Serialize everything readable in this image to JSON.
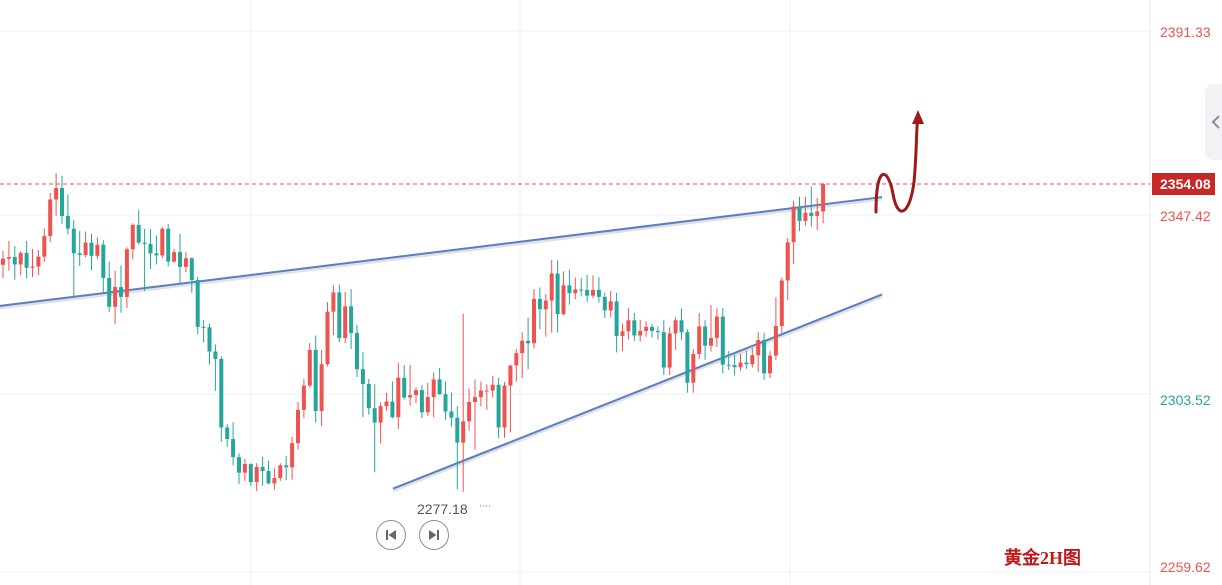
{
  "chart_data": {
    "type": "candlestick",
    "price_axis": {
      "labels": [
        "2391.33",
        "2347.42",
        "2303.52",
        "2259.62"
      ],
      "values": [
        2391.33,
        2347.42,
        2303.52,
        2259.62
      ],
      "range": [
        2259.62,
        2391.33
      ]
    },
    "current_price": {
      "label": "2354.08",
      "value": 2354.08
    },
    "low_marker": {
      "label": "2277.18",
      "value": 2277.18
    },
    "watermark": "黄金2H图",
    "candles": [
      [
        2334.4,
        2337.8,
        2331.2,
        2335.9
      ],
      [
        2335.9,
        2340.2,
        2333.0,
        2336.3
      ],
      [
        2336.3,
        2339.0,
        2330.8,
        2334.5
      ],
      [
        2334.5,
        2337.7,
        2331.9,
        2337.3
      ],
      [
        2337.3,
        2340.2,
        2331.1,
        2333.7
      ],
      [
        2333.7,
        2338.3,
        2331.4,
        2334.0
      ],
      [
        2334.0,
        2338.0,
        2331.9,
        2336.4
      ],
      [
        2336.4,
        2343.3,
        2335.1,
        2341.4
      ],
      [
        2341.4,
        2351.9,
        2339.9,
        2350.3
      ],
      [
        2350.3,
        2356.7,
        2346.4,
        2353.1
      ],
      [
        2353.1,
        2356.1,
        2344.4,
        2346.3
      ],
      [
        2346.3,
        2351.5,
        2341.8,
        2343.2
      ],
      [
        2343.2,
        2345.3,
        2326.3,
        2337.2
      ],
      [
        2337.2,
        2342.6,
        2334.1,
        2336.8
      ],
      [
        2336.8,
        2342.5,
        2336.2,
        2339.8
      ],
      [
        2339.8,
        2342.0,
        2333.1,
        2336.6
      ],
      [
        2336.6,
        2341.1,
        2335.8,
        2339.3
      ],
      [
        2339.3,
        2340.4,
        2327.6,
        2331.2
      ],
      [
        2331.2,
        2335.2,
        2322.9,
        2324.2
      ],
      [
        2324.2,
        2333.0,
        2320.0,
        2329.0
      ],
      [
        2329.0,
        2334.3,
        2322.7,
        2326.6
      ],
      [
        2326.6,
        2338.7,
        2323.9,
        2338.2
      ],
      [
        2338.2,
        2344.5,
        2335.7,
        2344.1
      ],
      [
        2344.1,
        2347.8,
        2339.3,
        2339.8
      ],
      [
        2339.8,
        2343.2,
        2328.0,
        2339.5
      ],
      [
        2339.5,
        2343.1,
        2333.4,
        2337.2
      ],
      [
        2337.2,
        2341.6,
        2334.5,
        2336.7
      ],
      [
        2336.7,
        2343.6,
        2336.0,
        2343.2
      ],
      [
        2343.2,
        2344.4,
        2334.0,
        2335.2
      ],
      [
        2335.2,
        2338.2,
        2334.9,
        2337.5
      ],
      [
        2337.5,
        2342.0,
        2330.1,
        2333.9
      ],
      [
        2333.9,
        2337.6,
        2332.6,
        2336.0
      ],
      [
        2336.0,
        2336.2,
        2327.6,
        2330.7
      ],
      [
        2330.7,
        2331.5,
        2317.5,
        2319.3
      ],
      [
        2319.3,
        2321.0,
        2315.5,
        2319.2
      ],
      [
        2319.2,
        2320.1,
        2310.1,
        2313.3
      ],
      [
        2313.3,
        2315.0,
        2303.7,
        2311.5
      ],
      [
        2311.5,
        2312.1,
        2291.3,
        2294.8
      ],
      [
        2294.8,
        2295.6,
        2290.1,
        2292.0
      ],
      [
        2292.0,
        2296.1,
        2285.6,
        2287.6
      ],
      [
        2287.6,
        2288.5,
        2281.0,
        2283.8
      ],
      [
        2283.8,
        2287.1,
        2281.8,
        2285.9
      ],
      [
        2285.9,
        2286.1,
        2280.6,
        2281.5
      ],
      [
        2281.5,
        2286.1,
        2279.3,
        2285.2
      ],
      [
        2285.2,
        2287.7,
        2280.6,
        2284.2
      ],
      [
        2284.2,
        2286.7,
        2281.0,
        2281.2
      ],
      [
        2281.2,
        2284.9,
        2279.6,
        2282.5
      ],
      [
        2282.5,
        2286.1,
        2281.8,
        2285.6
      ],
      [
        2285.6,
        2287.9,
        2282.0,
        2285.1
      ],
      [
        2285.1,
        2292.5,
        2282.1,
        2291.0
      ],
      [
        2291.0,
        2301.0,
        2289.4,
        2299.1
      ],
      [
        2299.1,
        2306.6,
        2297.1,
        2305.0
      ],
      [
        2305.0,
        2315.4,
        2304.5,
        2313.7
      ],
      [
        2313.7,
        2317.2,
        2296.0,
        2298.8
      ],
      [
        2298.8,
        2313.7,
        2295.1,
        2310.2
      ],
      [
        2310.2,
        2325.3,
        2309.7,
        2323.0
      ],
      [
        2323.0,
        2329.4,
        2317.3,
        2327.7
      ],
      [
        2327.7,
        2329.6,
        2315.6,
        2316.6
      ],
      [
        2316.6,
        2327.8,
        2315.3,
        2324.3
      ],
      [
        2324.3,
        2328.5,
        2313.9,
        2317.8
      ],
      [
        2317.8,
        2319.8,
        2307.1,
        2309.0
      ],
      [
        2309.0,
        2313.1,
        2297.3,
        2305.4
      ],
      [
        2305.4,
        2306.6,
        2297.9,
        2299.5
      ],
      [
        2299.5,
        2305.3,
        2283.9,
        2296.0
      ],
      [
        2296.0,
        2300.9,
        2290.9,
        2300.0
      ],
      [
        2300.0,
        2303.2,
        2298.9,
        2301.1
      ],
      [
        2301.1,
        2306.0,
        2297.0,
        2297.3
      ],
      [
        2297.3,
        2310.6,
        2294.4,
        2306.9
      ],
      [
        2306.9,
        2310.0,
        2301.6,
        2302.1
      ],
      [
        2302.1,
        2310.0,
        2300.1,
        2302.7
      ],
      [
        2302.7,
        2304.6,
        2300.7,
        2303.9
      ],
      [
        2303.9,
        2305.1,
        2297.1,
        2298.5
      ],
      [
        2298.5,
        2305.6,
        2297.6,
        2302.2
      ],
      [
        2302.2,
        2308.2,
        2297.3,
        2306.5
      ],
      [
        2306.5,
        2309.3,
        2302.8,
        2302.9
      ],
      [
        2302.9,
        2306.0,
        2296.6,
        2298.7
      ],
      [
        2298.7,
        2303.3,
        2295.0,
        2297.2
      ],
      [
        2297.2,
        2300.0,
        2279.7,
        2291.1
      ],
      [
        2291.1,
        2322.5,
        2279.1,
        2296.3
      ],
      [
        2296.3,
        2304.3,
        2294.0,
        2301.0
      ],
      [
        2301.0,
        2306.5,
        2289.4,
        2302.2
      ],
      [
        2302.2,
        2306.0,
        2299.9,
        2303.8
      ],
      [
        2303.8,
        2305.3,
        2299.1,
        2303.8
      ],
      [
        2303.8,
        2307.4,
        2302.1,
        2305.2
      ],
      [
        2305.2,
        2306.9,
        2292.2,
        2294.8
      ],
      [
        2294.8,
        2305.9,
        2292.3,
        2305.0
      ],
      [
        2305.0,
        2310.0,
        2293.6,
        2309.9
      ],
      [
        2309.9,
        2313.9,
        2306.0,
        2312.9
      ],
      [
        2312.9,
        2318.0,
        2306.8,
        2315.9
      ],
      [
        2315.9,
        2321.5,
        2309.0,
        2315.3
      ],
      [
        2315.3,
        2328.5,
        2314.0,
        2326.1
      ],
      [
        2326.1,
        2328.9,
        2318.7,
        2323.6
      ],
      [
        2323.6,
        2327.3,
        2316.9,
        2325.7
      ],
      [
        2325.7,
        2335.6,
        2317.9,
        2332.3
      ],
      [
        2332.3,
        2335.5,
        2317.9,
        2322.4
      ],
      [
        2322.4,
        2332.8,
        2322.1,
        2329.4
      ],
      [
        2329.4,
        2333.2,
        2324.7,
        2327.5
      ],
      [
        2327.5,
        2331.3,
        2326.0,
        2328.4
      ],
      [
        2328.4,
        2331.2,
        2326.7,
        2328.3
      ],
      [
        2328.3,
        2332.0,
        2325.4,
        2326.9
      ],
      [
        2326.9,
        2331.8,
        2326.3,
        2328.3
      ],
      [
        2328.3,
        2331.4,
        2325.2,
        2326.6
      ],
      [
        2326.6,
        2327.6,
        2321.5,
        2323.3
      ],
      [
        2323.3,
        2328.0,
        2321.6,
        2325.5
      ],
      [
        2325.5,
        2327.6,
        2313.1,
        2317.1
      ],
      [
        2317.1,
        2320.1,
        2313.4,
        2318.2
      ],
      [
        2318.2,
        2323.9,
        2316.2,
        2320.9
      ],
      [
        2320.9,
        2322.7,
        2315.9,
        2317.2
      ],
      [
        2317.2,
        2321.0,
        2315.7,
        2318.3
      ],
      [
        2318.3,
        2320.6,
        2316.9,
        2319.3
      ],
      [
        2319.3,
        2320.0,
        2316.7,
        2318.3
      ],
      [
        2318.3,
        2319.4,
        2316.2,
        2318.0
      ],
      [
        2318.0,
        2320.9,
        2307.6,
        2309.4
      ],
      [
        2309.4,
        2319.2,
        2307.6,
        2317.7
      ],
      [
        2317.7,
        2321.6,
        2313.7,
        2320.9
      ],
      [
        2320.9,
        2323.7,
        2316.2,
        2318.0
      ],
      [
        2318.0,
        2318.7,
        2303.3,
        2305.7
      ],
      [
        2305.7,
        2313.9,
        2303.3,
        2312.7
      ],
      [
        2312.7,
        2322.7,
        2311.5,
        2319.4
      ],
      [
        2319.4,
        2320.9,
        2311.3,
        2314.7
      ],
      [
        2314.7,
        2324.6,
        2313.3,
        2316.6
      ],
      [
        2316.6,
        2323.8,
        2314.4,
        2321.8
      ],
      [
        2321.8,
        2323.9,
        2308.0,
        2310.1
      ],
      [
        2310.1,
        2313.4,
        2308.8,
        2310.0
      ],
      [
        2310.0,
        2312.6,
        2307.4,
        2309.5
      ],
      [
        2309.5,
        2312.8,
        2308.6,
        2310.6
      ],
      [
        2310.6,
        2313.5,
        2309.1,
        2310.2
      ],
      [
        2310.2,
        2314.2,
        2309.4,
        2312.4
      ],
      [
        2312.4,
        2318.0,
        2308.3,
        2316.1
      ],
      [
        2316.1,
        2317.9,
        2306.4,
        2308.0
      ],
      [
        2308.0,
        2313.4,
        2306.8,
        2312.3
      ],
      [
        2312.3,
        2326.5,
        2311.3,
        2319.5
      ],
      [
        2319.5,
        2331.3,
        2317.8,
        2330.6
      ],
      [
        2330.6,
        2340.9,
        2325.8,
        2339.9
      ],
      [
        2339.9,
        2350.0,
        2334.6,
        2348.6
      ],
      [
        2348.6,
        2351.0,
        2342.6,
        2345.1
      ],
      [
        2345.1,
        2351.0,
        2343.9,
        2347.1
      ],
      [
        2347.1,
        2353.5,
        2343.7,
        2346.3
      ],
      [
        2346.3,
        2350.7,
        2342.9,
        2347.4
      ],
      [
        2347.4,
        2354.3,
        2344.5,
        2354.1
      ]
    ],
    "trendlines": [
      {
        "name": "upper",
        "start": [
          -0.5,
          2324.4
        ],
        "end": [
          149.0,
          2350.9
        ]
      },
      {
        "name": "lower",
        "start": [
          66.1,
          2279.9
        ],
        "end": [
          149.0,
          2327.2
        ]
      }
    ],
    "projection_arrow_color": "#9e1a1a",
    "colors": {
      "up": "#ef5350",
      "down": "#26a69a",
      "trend": "#5b7ec2",
      "price_line": "#ef5350",
      "tag": "#c62828",
      "watermark": "#c01818",
      "axis_low": "#26a69a"
    }
  }
}
